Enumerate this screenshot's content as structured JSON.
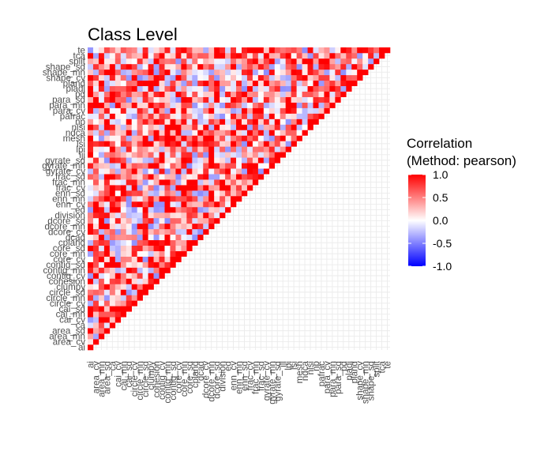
{
  "chart_data": {
    "type": "heatmap",
    "title": "Class Level",
    "xlabel": "",
    "ylabel": "",
    "variables": [
      "ai",
      "area_cv",
      "area_mn",
      "area_sd",
      "ca",
      "cai_cv",
      "cai_mn",
      "cai_sd",
      "circle_cv",
      "circle_mn",
      "circle_sd",
      "clumpy",
      "cohesion",
      "contig_cv",
      "contig_mn",
      "contig_sd",
      "core_cv",
      "core_mn",
      "core_sd",
      "cpland",
      "dcad",
      "dcore_cv",
      "dcore_mn",
      "dcore_sd",
      "division",
      "ed",
      "enn_cv",
      "enn_mn",
      "enn_sd",
      "frac_cv",
      "frac_mn",
      "frac_sd",
      "gyrate_cv",
      "gyrate_mn",
      "gyrate_sd",
      "iji",
      "lpi",
      "lsi",
      "mesh",
      "ndca",
      "nlsi",
      "np",
      "pafrac",
      "para_cv",
      "para_mn",
      "para_sd",
      "pd",
      "pladj",
      "pland",
      "shape_cv",
      "shape_mn",
      "shape_sd",
      "split",
      "tca",
      "te"
    ],
    "legend": {
      "title_line1": "Correlation",
      "title_line2": "(Method: pearson)",
      "breaks": [
        "1.0",
        "0.5",
        "0.0",
        "-0.5",
        "-1.0"
      ],
      "range": [
        -1,
        1
      ],
      "colors": {
        "low": "#0000ff",
        "mid": "#ffffff",
        "high": "#ff0000"
      },
      "position": "right"
    },
    "grid": true,
    "layout": "lower-triangle"
  }
}
